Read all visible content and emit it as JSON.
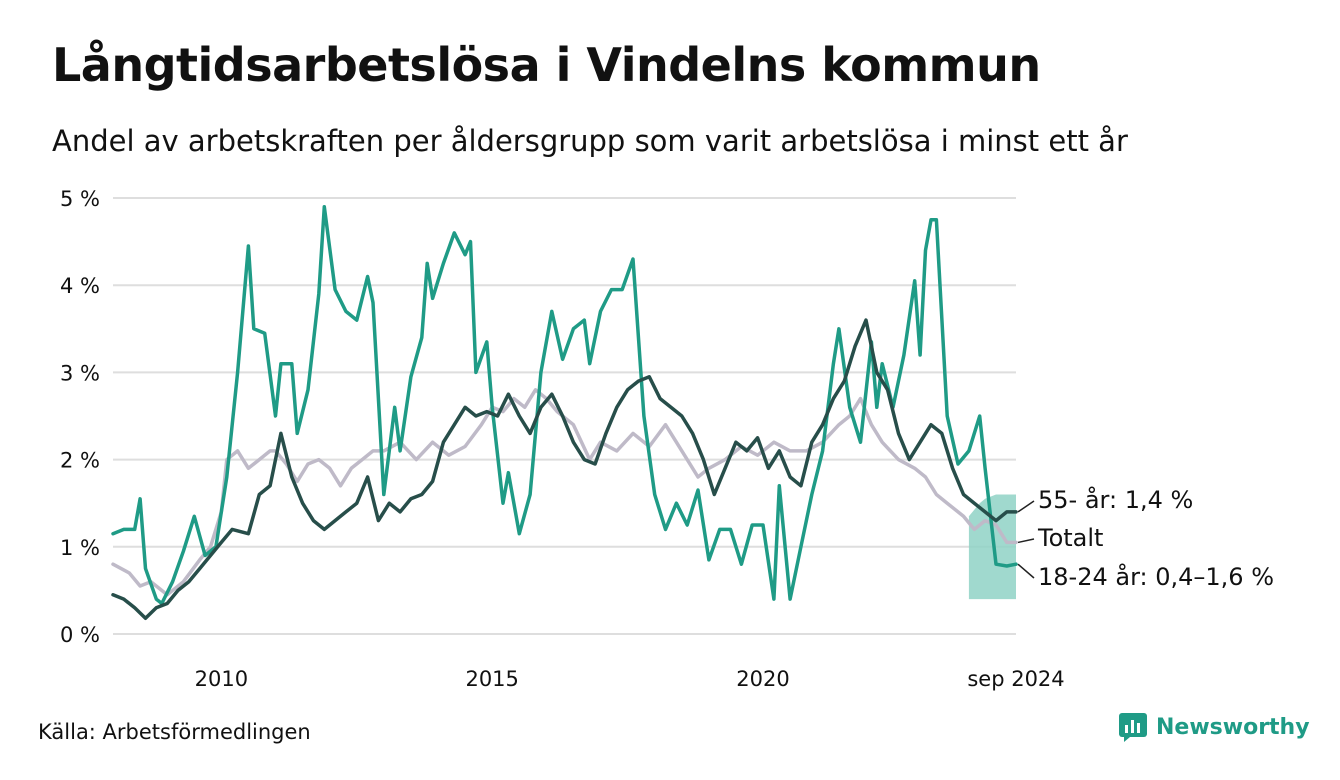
{
  "title": "Långtidsarbetslösa i Vindelns kommun",
  "subtitle": "Andel av arbetskraften per åldersgrupp som varit arbetslösa i minst ett år",
  "source": "Källa: Arbetsförmedlingen",
  "brand": "Newsworthy",
  "colors": {
    "youth": "#1f9b86",
    "youth_band": "#8fd2c6",
    "senior": "#274e4a",
    "total": "#bfbac8",
    "grid": "#dedede",
    "logo": "#1f9b86"
  },
  "chart_data": {
    "type": "line",
    "title": "Långtidsarbetslösa i Vindelns kommun",
    "subtitle": "Andel av arbetskraften per åldersgrupp som varit arbetslösa i minst ett år",
    "xlabel": "",
    "ylabel": "",
    "ylim": [
      0,
      5
    ],
    "y_ticks": [
      0,
      1,
      2,
      3,
      4,
      5
    ],
    "y_tick_labels": [
      "0 %",
      "1 %",
      "2 %",
      "3 %",
      "4 %",
      "5 %"
    ],
    "x_range": [
      2008.0,
      2024.67
    ],
    "x_ticks": [
      2010,
      2015,
      2020,
      2024.67
    ],
    "x_tick_labels": [
      "2010",
      "2015",
      "2020",
      "sep 2024"
    ],
    "grid": true,
    "series": [
      {
        "name": "Totalt",
        "label": "Totalt",
        "points": [
          [
            2008.0,
            0.8
          ],
          [
            2008.3,
            0.7
          ],
          [
            2008.5,
            0.55
          ],
          [
            2008.7,
            0.6
          ],
          [
            2009.0,
            0.45
          ],
          [
            2009.3,
            0.6
          ],
          [
            2009.6,
            0.85
          ],
          [
            2009.8,
            1.0
          ],
          [
            2010.0,
            1.4
          ],
          [
            2010.1,
            2.0
          ],
          [
            2010.3,
            2.1
          ],
          [
            2010.5,
            1.9
          ],
          [
            2010.7,
            2.0
          ],
          [
            2010.9,
            2.1
          ],
          [
            2011.0,
            2.1
          ],
          [
            2011.2,
            1.95
          ],
          [
            2011.4,
            1.75
          ],
          [
            2011.6,
            1.95
          ],
          [
            2011.8,
            2.0
          ],
          [
            2012.0,
            1.9
          ],
          [
            2012.2,
            1.7
          ],
          [
            2012.4,
            1.9
          ],
          [
            2012.6,
            2.0
          ],
          [
            2012.8,
            2.1
          ],
          [
            2013.0,
            2.1
          ],
          [
            2013.3,
            2.2
          ],
          [
            2013.6,
            2.0
          ],
          [
            2013.9,
            2.2
          ],
          [
            2014.2,
            2.05
          ],
          [
            2014.5,
            2.15
          ],
          [
            2014.8,
            2.4
          ],
          [
            2015.0,
            2.6
          ],
          [
            2015.2,
            2.55
          ],
          [
            2015.4,
            2.7
          ],
          [
            2015.6,
            2.6
          ],
          [
            2015.8,
            2.8
          ],
          [
            2016.0,
            2.7
          ],
          [
            2016.2,
            2.55
          ],
          [
            2016.5,
            2.4
          ],
          [
            2016.8,
            2.0
          ],
          [
            2017.0,
            2.2
          ],
          [
            2017.3,
            2.1
          ],
          [
            2017.6,
            2.3
          ],
          [
            2017.9,
            2.15
          ],
          [
            2018.2,
            2.4
          ],
          [
            2018.4,
            2.2
          ],
          [
            2018.6,
            2.0
          ],
          [
            2018.8,
            1.8
          ],
          [
            2019.0,
            1.9
          ],
          [
            2019.3,
            2.0
          ],
          [
            2019.6,
            2.15
          ],
          [
            2019.9,
            2.05
          ],
          [
            2020.2,
            2.2
          ],
          [
            2020.5,
            2.1
          ],
          [
            2020.8,
            2.1
          ],
          [
            2021.1,
            2.2
          ],
          [
            2021.4,
            2.4
          ],
          [
            2021.6,
            2.5
          ],
          [
            2021.8,
            2.7
          ],
          [
            2022.0,
            2.4
          ],
          [
            2022.2,
            2.2
          ],
          [
            2022.5,
            2.0
          ],
          [
            2022.8,
            1.9
          ],
          [
            2023.0,
            1.8
          ],
          [
            2023.2,
            1.6
          ],
          [
            2023.4,
            1.5
          ],
          [
            2023.7,
            1.35
          ],
          [
            2023.9,
            1.2
          ],
          [
            2024.1,
            1.3
          ],
          [
            2024.3,
            1.25
          ],
          [
            2024.5,
            1.05
          ],
          [
            2024.67,
            1.05
          ]
        ]
      },
      {
        "name": "55- år",
        "label": "55- år: 1,4 %",
        "points": [
          [
            2008.0,
            0.45
          ],
          [
            2008.2,
            0.4
          ],
          [
            2008.4,
            0.3
          ],
          [
            2008.6,
            0.18
          ],
          [
            2008.8,
            0.3
          ],
          [
            2009.0,
            0.35
          ],
          [
            2009.2,
            0.5
          ],
          [
            2009.4,
            0.6
          ],
          [
            2009.6,
            0.75
          ],
          [
            2009.8,
            0.9
          ],
          [
            2010.0,
            1.05
          ],
          [
            2010.2,
            1.2
          ],
          [
            2010.5,
            1.15
          ],
          [
            2010.7,
            1.6
          ],
          [
            2010.9,
            1.7
          ],
          [
            2011.1,
            2.3
          ],
          [
            2011.3,
            1.8
          ],
          [
            2011.5,
            1.5
          ],
          [
            2011.7,
            1.3
          ],
          [
            2011.9,
            1.2
          ],
          [
            2012.1,
            1.3
          ],
          [
            2012.3,
            1.4
          ],
          [
            2012.5,
            1.5
          ],
          [
            2012.7,
            1.8
          ],
          [
            2012.9,
            1.3
          ],
          [
            2013.1,
            1.5
          ],
          [
            2013.3,
            1.4
          ],
          [
            2013.5,
            1.55
          ],
          [
            2013.7,
            1.6
          ],
          [
            2013.9,
            1.75
          ],
          [
            2014.1,
            2.2
          ],
          [
            2014.3,
            2.4
          ],
          [
            2014.5,
            2.6
          ],
          [
            2014.7,
            2.5
          ],
          [
            2014.9,
            2.55
          ],
          [
            2015.1,
            2.5
          ],
          [
            2015.3,
            2.75
          ],
          [
            2015.5,
            2.5
          ],
          [
            2015.7,
            2.3
          ],
          [
            2015.9,
            2.6
          ],
          [
            2016.1,
            2.75
          ],
          [
            2016.3,
            2.5
          ],
          [
            2016.5,
            2.2
          ],
          [
            2016.7,
            2.0
          ],
          [
            2016.9,
            1.95
          ],
          [
            2017.1,
            2.3
          ],
          [
            2017.3,
            2.6
          ],
          [
            2017.5,
            2.8
          ],
          [
            2017.7,
            2.9
          ],
          [
            2017.9,
            2.95
          ],
          [
            2018.1,
            2.7
          ],
          [
            2018.3,
            2.6
          ],
          [
            2018.5,
            2.5
          ],
          [
            2018.7,
            2.3
          ],
          [
            2018.9,
            2.0
          ],
          [
            2019.1,
            1.6
          ],
          [
            2019.3,
            1.9
          ],
          [
            2019.5,
            2.2
          ],
          [
            2019.7,
            2.1
          ],
          [
            2019.9,
            2.25
          ],
          [
            2020.1,
            1.9
          ],
          [
            2020.3,
            2.1
          ],
          [
            2020.5,
            1.8
          ],
          [
            2020.7,
            1.7
          ],
          [
            2020.9,
            2.2
          ],
          [
            2021.1,
            2.4
          ],
          [
            2021.3,
            2.7
          ],
          [
            2021.5,
            2.9
          ],
          [
            2021.7,
            3.3
          ],
          [
            2021.9,
            3.6
          ],
          [
            2022.1,
            3.0
          ],
          [
            2022.3,
            2.8
          ],
          [
            2022.5,
            2.3
          ],
          [
            2022.7,
            2.0
          ],
          [
            2022.9,
            2.2
          ],
          [
            2023.1,
            2.4
          ],
          [
            2023.3,
            2.3
          ],
          [
            2023.5,
            1.9
          ],
          [
            2023.7,
            1.6
          ],
          [
            2023.9,
            1.5
          ],
          [
            2024.1,
            1.4
          ],
          [
            2024.3,
            1.3
          ],
          [
            2024.5,
            1.4
          ],
          [
            2024.67,
            1.4
          ]
        ]
      },
      {
        "name": "18-24 år",
        "label": "18-24 år: 0,4–1,6 %",
        "points": [
          [
            2008.0,
            1.15
          ],
          [
            2008.2,
            1.2
          ],
          [
            2008.4,
            1.2
          ],
          [
            2008.5,
            1.55
          ],
          [
            2008.6,
            0.75
          ],
          [
            2008.8,
            0.4
          ],
          [
            2008.9,
            0.35
          ],
          [
            2009.1,
            0.6
          ],
          [
            2009.3,
            0.95
          ],
          [
            2009.5,
            1.35
          ],
          [
            2009.7,
            0.9
          ],
          [
            2009.9,
            1.0
          ],
          [
            2010.1,
            1.8
          ],
          [
            2010.3,
            3.0
          ],
          [
            2010.5,
            4.45
          ],
          [
            2010.6,
            3.5
          ],
          [
            2010.8,
            3.45
          ],
          [
            2011.0,
            2.5
          ],
          [
            2011.1,
            3.1
          ],
          [
            2011.3,
            3.1
          ],
          [
            2011.4,
            2.3
          ],
          [
            2011.6,
            2.8
          ],
          [
            2011.8,
            3.9
          ],
          [
            2011.9,
            4.9
          ],
          [
            2012.1,
            3.95
          ],
          [
            2012.3,
            3.7
          ],
          [
            2012.5,
            3.6
          ],
          [
            2012.7,
            4.1
          ],
          [
            2012.8,
            3.8
          ],
          [
            2013.0,
            1.6
          ],
          [
            2013.2,
            2.6
          ],
          [
            2013.3,
            2.1
          ],
          [
            2013.5,
            2.95
          ],
          [
            2013.7,
            3.4
          ],
          [
            2013.8,
            4.25
          ],
          [
            2013.9,
            3.85
          ],
          [
            2014.1,
            4.25
          ],
          [
            2014.3,
            4.6
          ],
          [
            2014.5,
            4.35
          ],
          [
            2014.6,
            4.5
          ],
          [
            2014.7,
            3.0
          ],
          [
            2014.9,
            3.35
          ],
          [
            2015.0,
            2.6
          ],
          [
            2015.2,
            1.5
          ],
          [
            2015.3,
            1.85
          ],
          [
            2015.5,
            1.15
          ],
          [
            2015.7,
            1.6
          ],
          [
            2015.9,
            3.0
          ],
          [
            2016.1,
            3.7
          ],
          [
            2016.3,
            3.15
          ],
          [
            2016.5,
            3.5
          ],
          [
            2016.7,
            3.6
          ],
          [
            2016.8,
            3.1
          ],
          [
            2017.0,
            3.7
          ],
          [
            2017.2,
            3.95
          ],
          [
            2017.4,
            3.95
          ],
          [
            2017.6,
            4.3
          ],
          [
            2017.8,
            2.5
          ],
          [
            2018.0,
            1.6
          ],
          [
            2018.2,
            1.2
          ],
          [
            2018.4,
            1.5
          ],
          [
            2018.6,
            1.25
          ],
          [
            2018.8,
            1.65
          ],
          [
            2019.0,
            0.85
          ],
          [
            2019.2,
            1.2
          ],
          [
            2019.4,
            1.2
          ],
          [
            2019.6,
            0.8
          ],
          [
            2019.8,
            1.25
          ],
          [
            2020.0,
            1.25
          ],
          [
            2020.2,
            0.4
          ],
          [
            2020.3,
            1.7
          ],
          [
            2020.5,
            0.4
          ],
          [
            2020.7,
            1.0
          ],
          [
            2020.9,
            1.6
          ],
          [
            2021.1,
            2.1
          ],
          [
            2021.3,
            3.1
          ],
          [
            2021.4,
            3.5
          ],
          [
            2021.6,
            2.6
          ],
          [
            2021.8,
            2.2
          ],
          [
            2022.0,
            3.35
          ],
          [
            2022.1,
            2.6
          ],
          [
            2022.2,
            3.1
          ],
          [
            2022.4,
            2.6
          ],
          [
            2022.6,
            3.2
          ],
          [
            2022.8,
            4.05
          ],
          [
            2022.9,
            3.2
          ],
          [
            2023.0,
            4.4
          ],
          [
            2023.1,
            4.75
          ],
          [
            2023.2,
            4.75
          ],
          [
            2023.4,
            2.5
          ],
          [
            2023.6,
            1.95
          ],
          [
            2023.8,
            2.1
          ],
          [
            2023.9,
            2.3
          ],
          [
            2024.0,
            2.5
          ],
          [
            2024.1,
            1.9
          ],
          [
            2024.3,
            0.8
          ],
          [
            2024.5,
            0.78
          ],
          [
            2024.67,
            0.8
          ]
        ]
      }
    ],
    "band": {
      "name": "18-24 år",
      "points": [
        [
          2023.8,
          0.4,
          1.35
        ],
        [
          2024.0,
          0.4,
          1.5
        ],
        [
          2024.1,
          0.4,
          1.55
        ],
        [
          2024.3,
          0.4,
          1.6
        ],
        [
          2024.5,
          0.4,
          1.6
        ],
        [
          2024.67,
          0.4,
          1.6
        ]
      ]
    }
  }
}
